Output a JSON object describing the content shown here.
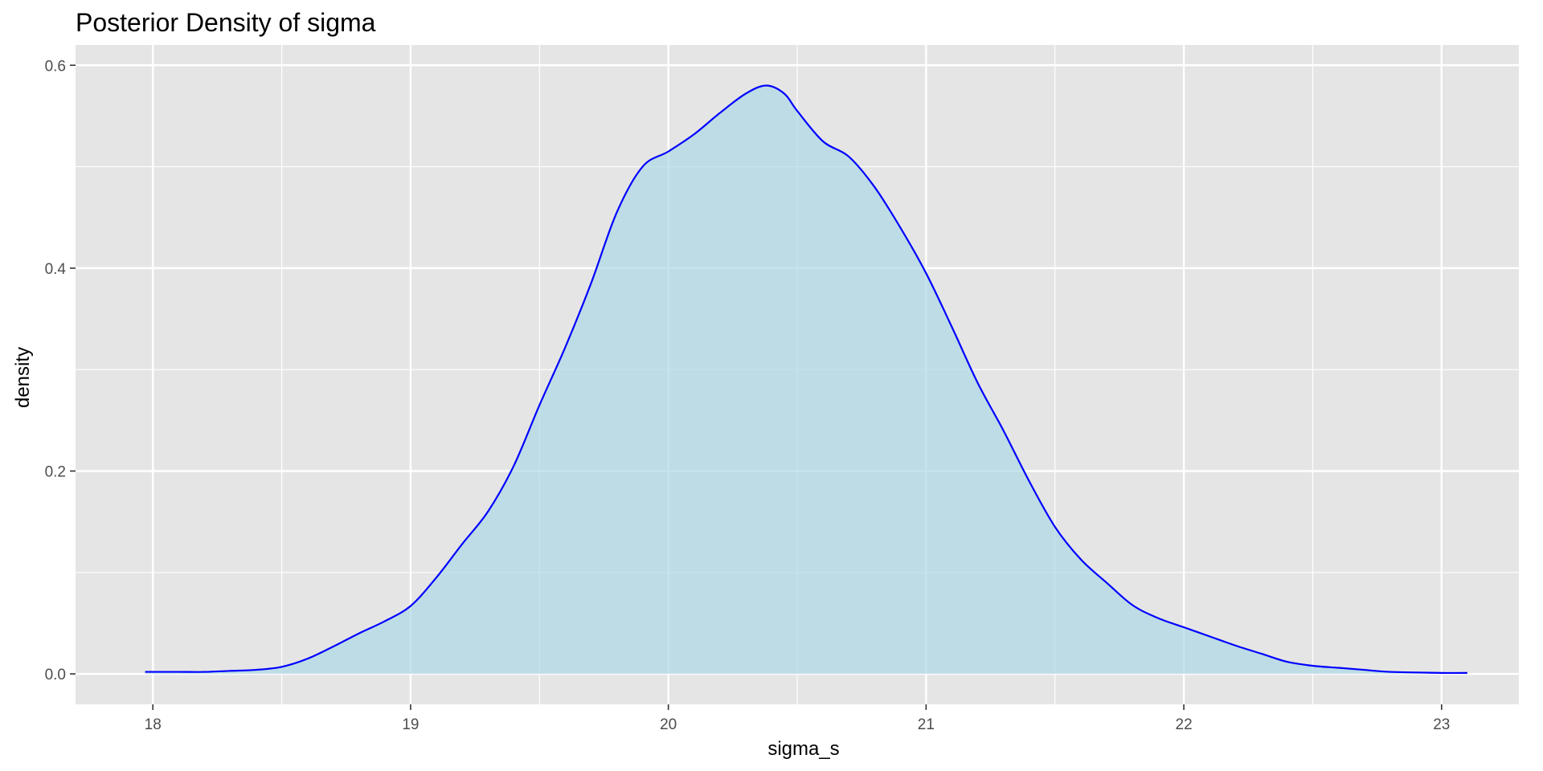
{
  "chart_data": {
    "type": "area",
    "title": "Posterior Density of sigma",
    "xlabel": "sigma_s",
    "ylabel": "density",
    "xlim": [
      17.7,
      23.3
    ],
    "ylim": [
      -0.03,
      0.62
    ],
    "x_ticks": [
      18,
      19,
      20,
      21,
      22,
      23
    ],
    "y_ticks": [
      0.0,
      0.2,
      0.4,
      0.6
    ],
    "x_tick_labels": [
      "18",
      "19",
      "20",
      "21",
      "22",
      "23"
    ],
    "y_tick_labels": [
      "0.0",
      "0.2",
      "0.4",
      "0.6"
    ],
    "grid": true,
    "panel_color": "#e5e5e5",
    "grid_color": "#ffffff",
    "line_color": "#0000ff",
    "fill_color": "#add8e6",
    "fill_opacity": 0.7,
    "series": [
      {
        "x": [
          17.97,
          18.1,
          18.2,
          18.3,
          18.4,
          18.5,
          18.6,
          18.7,
          18.8,
          18.9,
          19.0,
          19.1,
          19.2,
          19.3,
          19.4,
          19.5,
          19.6,
          19.7,
          19.8,
          19.9,
          20.0,
          20.1,
          20.2,
          20.3,
          20.38,
          20.45,
          20.5,
          20.6,
          20.7,
          20.8,
          20.9,
          21.0,
          21.1,
          21.2,
          21.3,
          21.4,
          21.5,
          21.6,
          21.7,
          21.8,
          21.9,
          22.0,
          22.1,
          22.2,
          22.3,
          22.4,
          22.5,
          22.6,
          22.7,
          22.8,
          23.0,
          23.1
        ],
        "y": [
          0.002,
          0.002,
          0.002,
          0.003,
          0.004,
          0.007,
          0.015,
          0.027,
          0.04,
          0.052,
          0.067,
          0.095,
          0.128,
          0.16,
          0.205,
          0.265,
          0.322,
          0.385,
          0.455,
          0.5,
          0.515,
          0.532,
          0.553,
          0.572,
          0.58,
          0.572,
          0.555,
          0.525,
          0.51,
          0.48,
          0.44,
          0.395,
          0.342,
          0.287,
          0.24,
          0.19,
          0.145,
          0.113,
          0.09,
          0.068,
          0.055,
          0.046,
          0.037,
          0.028,
          0.02,
          0.012,
          0.008,
          0.006,
          0.004,
          0.002,
          0.001,
          0.001
        ]
      }
    ]
  }
}
